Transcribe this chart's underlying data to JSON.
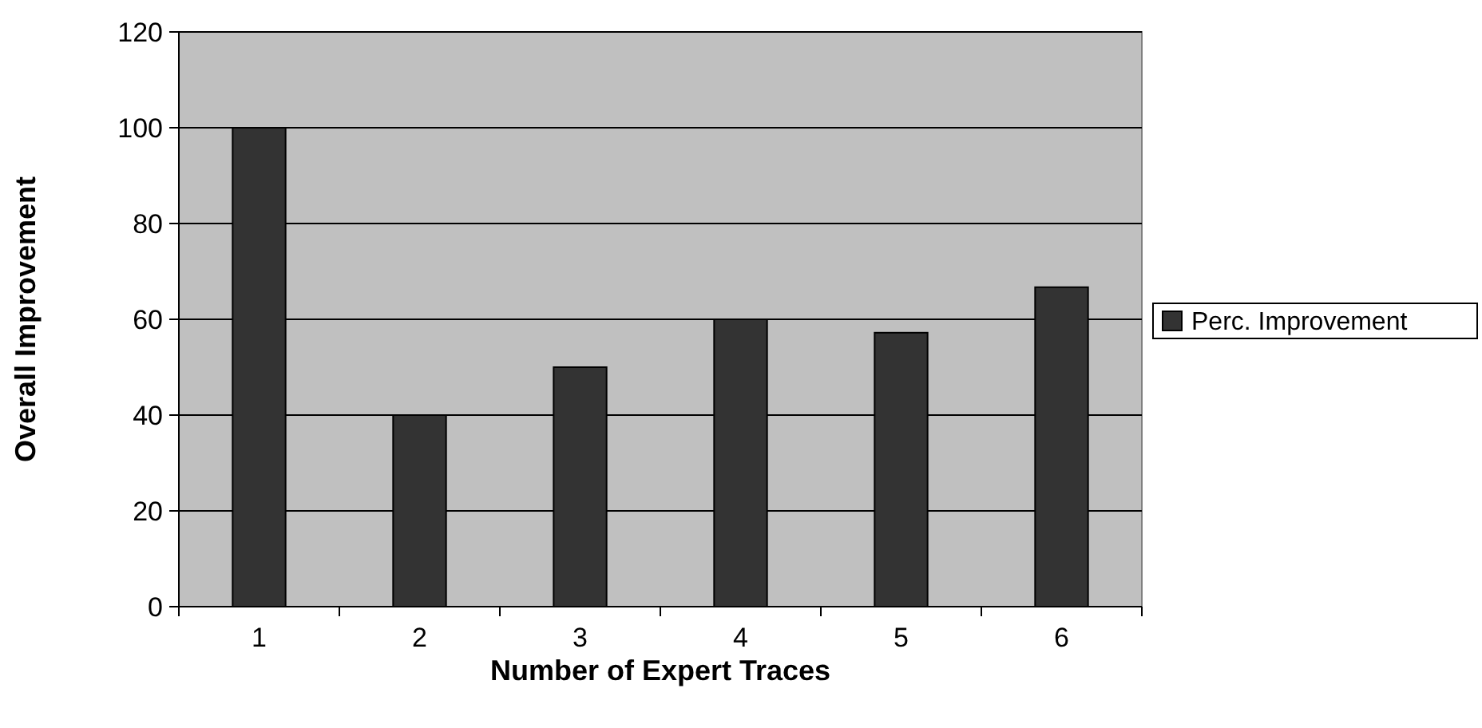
{
  "chart_data": {
    "type": "bar",
    "xlabel": "Number of Expert Traces",
    "ylabel": "Overall Improvement",
    "categories": [
      "1",
      "2",
      "3",
      "4",
      "5",
      "6"
    ],
    "series": [
      {
        "name": "Perc. Improvement",
        "color": "#333333",
        "values": [
          100,
          40,
          50,
          60,
          57.2,
          66.7
        ]
      }
    ],
    "ylim": [
      0,
      120
    ],
    "yticks": [
      0,
      20,
      40,
      60,
      80,
      100,
      120
    ],
    "grid": "y",
    "legend": "right"
  }
}
